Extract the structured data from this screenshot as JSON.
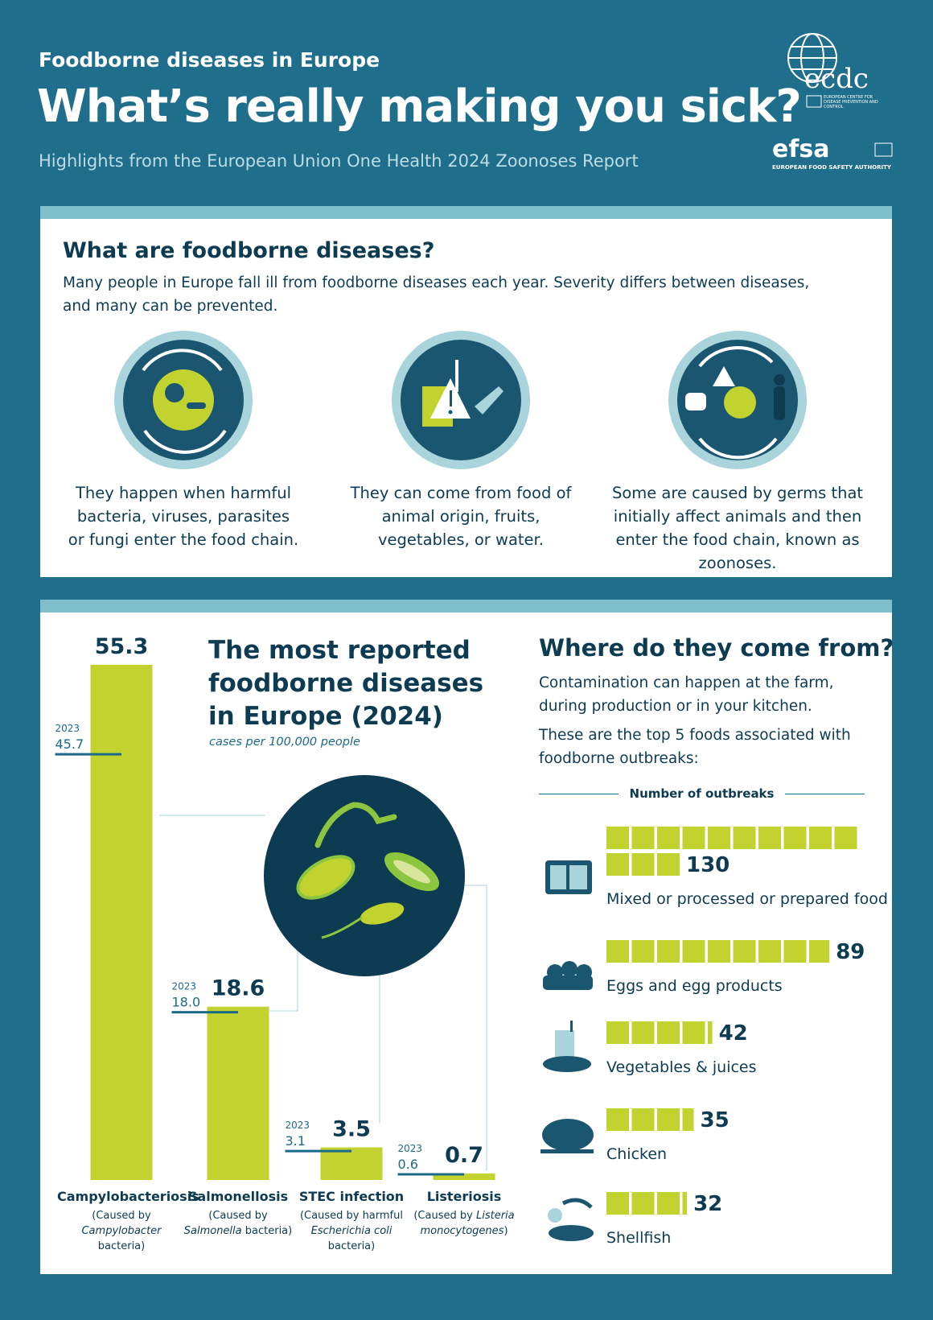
{
  "header": {
    "kicker": "Foodborne diseases in Europe",
    "title": "What’s really making you sick?",
    "subtitle": "Highlights from the European Union One Health 2024 Zoonoses Report",
    "logos": [
      "ecdc",
      "EUROPEAN CENTRE FOR DISEASE PREVENTION AND CONTROL",
      "efsa",
      "EUROPEAN FOOD SAFETY AUTHORITY"
    ]
  },
  "intro": {
    "heading": "What are foodborne diseases?",
    "text": "Many people in Europe fall ill from foodborne diseases each year. Severity differs between diseases, and many can be prevented.",
    "cards": [
      "They happen when harmful bacteria, viruses, parasites or fungi enter the food chain.",
      "They can come from food of animal origin, fruits, vegetables, or water.",
      "Some are caused by germs that initially affect animals and then enter the food chain, known as zoonoses."
    ]
  },
  "chart_data": [
    {
      "type": "bar",
      "title": [
        "The most reported",
        "foodborne diseases",
        "in Europe (2024)"
      ],
      "subtitle": "cases per 100,000 people",
      "categories": [
        "Campylobacteriosis",
        "Salmonellosis",
        "STEC infection",
        "Listeriosis"
      ],
      "notes": [
        [
          "(Caused by",
          "Campylobacter",
          "bacteria)"
        ],
        [
          "(Caused by",
          "Salmonella",
          "bacteria)"
        ],
        [
          "(Caused by harmful",
          "Escherichia coli",
          "bacteria)"
        ],
        [
          "(Caused by",
          "Listeria monocytogenes",
          ")"
        ]
      ],
      "series": [
        {
          "color": "#c2d22f",
          "values": [
            55.3,
            18.6,
            3.5,
            0.7
          ]
        },
        {
          "name": "2023",
          "color": "#1b6a8a",
          "values": [
            45.7,
            18.0,
            3.1,
            0.6
          ],
          "value_labels": [
            "45.7",
            "18.0",
            "3.1",
            "0.6"
          ]
        }
      ]
    },
    {
      "type": "unit-bar",
      "title": "Where do they come from?",
      "text": [
        "Contamination can happen at the farm, during production or in your kitchen.",
        "These are the top 5 foods associated with foodborne outbreaks:"
      ],
      "axis_label": "Number of outbreaks",
      "categories": [
        "Mixed or processed or prepared food",
        "Eggs and egg products",
        "Vegetables & juices",
        "Chicken",
        "Shellfish"
      ],
      "values": [
        130,
        89,
        42,
        35,
        32
      ],
      "color": "#c2d22f"
    }
  ]
}
